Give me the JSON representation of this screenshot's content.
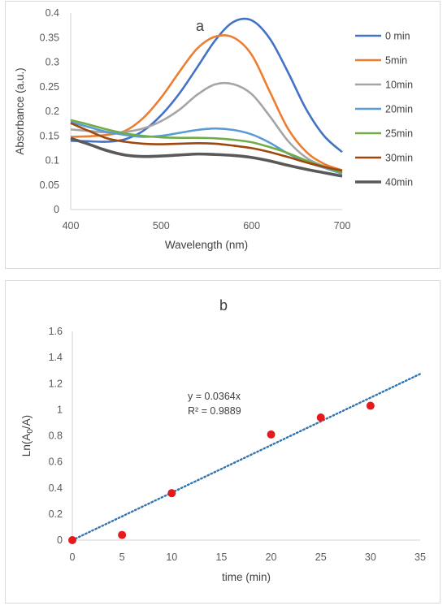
{
  "chart_data": [
    {
      "type": "line",
      "title": "a",
      "xlabel": "Wavelength (nm)",
      "ylabel": "Absorbance (a.u.)",
      "xlim": [
        400,
        700
      ],
      "ylim": [
        0,
        0.4
      ],
      "xticks": [
        "400",
        "500",
        "600",
        "700"
      ],
      "yticks": [
        "0",
        "0.05",
        "0.1",
        "0.15",
        "0.2",
        "0.25",
        "0.3",
        "0.35",
        "0.4"
      ],
      "grid": false,
      "legend": "right",
      "x": [
        400,
        420,
        440,
        460,
        480,
        500,
        520,
        540,
        560,
        580,
        600,
        620,
        640,
        660,
        680,
        700
      ],
      "series": [
        {
          "name": "0 min",
          "color": "#4472C4",
          "values": [
            0.14,
            0.139,
            0.138,
            0.143,
            0.16,
            0.192,
            0.236,
            0.29,
            0.345,
            0.382,
            0.385,
            0.348,
            0.28,
            0.205,
            0.15,
            0.117
          ]
        },
        {
          "name": "5min",
          "color": "#ED7D31",
          "values": [
            0.148,
            0.149,
            0.152,
            0.16,
            0.186,
            0.228,
            0.28,
            0.328,
            0.352,
            0.35,
            0.315,
            0.24,
            0.165,
            0.118,
            0.093,
            0.08
          ]
        },
        {
          "name": "10min",
          "color": "#A5A5A5",
          "values": [
            0.163,
            0.16,
            0.157,
            0.158,
            0.165,
            0.18,
            0.203,
            0.234,
            0.255,
            0.255,
            0.235,
            0.19,
            0.14,
            0.106,
            0.088,
            0.078
          ]
        },
        {
          "name": "20min",
          "color": "#5B9BD5",
          "values": [
            0.178,
            0.168,
            0.158,
            0.152,
            0.148,
            0.15,
            0.156,
            0.162,
            0.165,
            0.162,
            0.153,
            0.136,
            0.114,
            0.097,
            0.085,
            0.073
          ]
        },
        {
          "name": "25min",
          "color": "#70AD47",
          "values": [
            0.182,
            0.173,
            0.163,
            0.155,
            0.15,
            0.147,
            0.146,
            0.146,
            0.145,
            0.142,
            0.137,
            0.127,
            0.115,
            0.1,
            0.087,
            0.075
          ]
        },
        {
          "name": "30min",
          "color": "#9E480E",
          "values": [
            0.176,
            0.16,
            0.145,
            0.138,
            0.134,
            0.133,
            0.134,
            0.135,
            0.134,
            0.13,
            0.125,
            0.117,
            0.107,
            0.096,
            0.087,
            0.079
          ]
        },
        {
          "name": "40min",
          "color": "#595959",
          "values": [
            0.145,
            0.133,
            0.12,
            0.111,
            0.108,
            0.109,
            0.111,
            0.113,
            0.112,
            0.11,
            0.106,
            0.099,
            0.09,
            0.082,
            0.075,
            0.068
          ]
        }
      ]
    },
    {
      "type": "scatter",
      "title": "b",
      "xlabel": "time (min)",
      "ylabel_parts": [
        "Ln(A",
        "0",
        "/A)"
      ],
      "xlim": [
        0,
        35
      ],
      "ylim": [
        0,
        1.6
      ],
      "xticks": [
        "0",
        "5",
        "10",
        "15",
        "20",
        "25",
        "30",
        "35"
      ],
      "yticks": [
        "0",
        "0.2",
        "0.4",
        "0.6",
        "0.8",
        "1",
        "1.2",
        "1.4",
        "1.6"
      ],
      "grid": false,
      "legend": "none",
      "point_color": "#E41A1C",
      "trend_color": "#2E75B6",
      "x": [
        0,
        5,
        10,
        20,
        25,
        30
      ],
      "y": [
        0.0,
        0.04,
        0.36,
        0.81,
        0.94,
        1.03
      ],
      "trendline": {
        "slope": 0.0364,
        "intercept": 0,
        "x_range": [
          0,
          35
        ],
        "style": "dotted"
      },
      "equation": "y = 0.0364x",
      "r_squared": "R² = 0.9889"
    }
  ]
}
